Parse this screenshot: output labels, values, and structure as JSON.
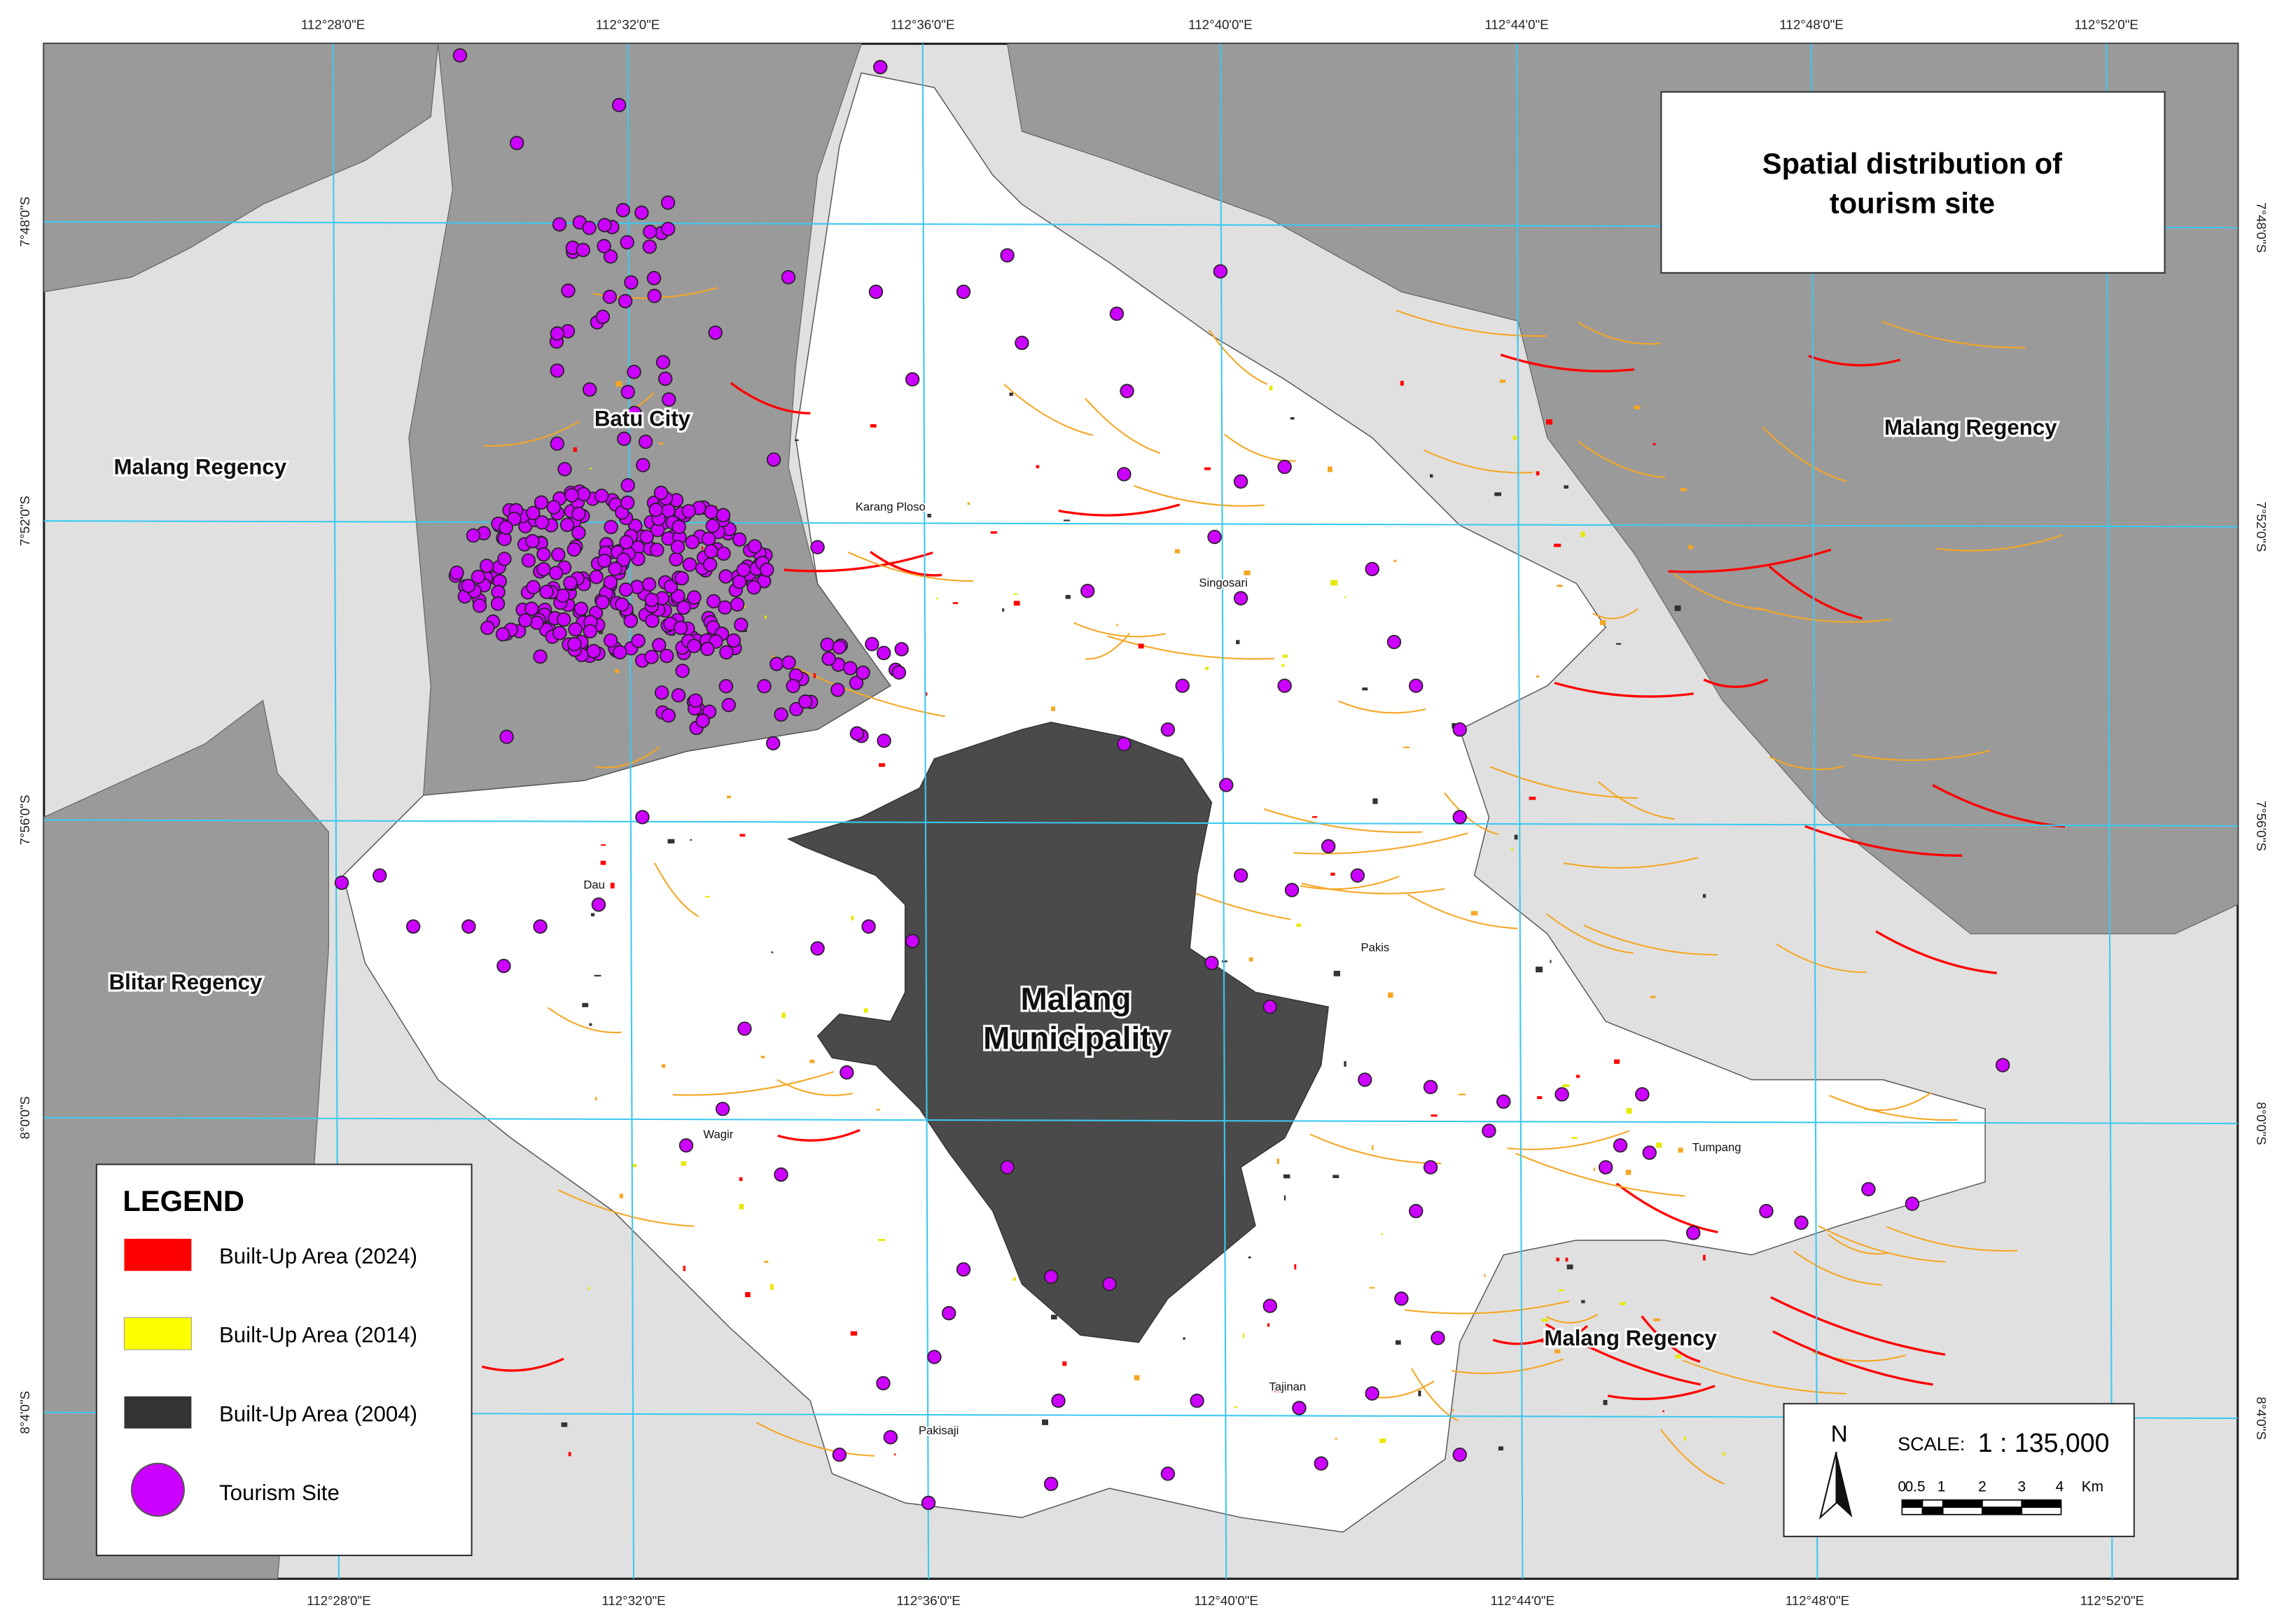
{
  "title": {
    "lines": [
      "Spatial distribution of",
      "tourism site"
    ]
  },
  "grid": {
    "top": [
      "112°28'0\"E",
      "112°32'0\"E",
      "112°36'0\"E",
      "112°40'0\"E",
      "112°44'0\"E",
      "112°48'0\"E",
      "112°52'0\"E"
    ],
    "bottom": [
      "112°28'0\"E",
      "112°32'0\"E",
      "112°36'0\"E",
      "112°40'0\"E",
      "112°44'0\"E",
      "112°48'0\"E",
      "112°52'0\"E"
    ],
    "left": [
      "7°48'0\"S",
      "7°52'0\"S",
      "7°56'0\"S",
      "8°0'0\"S",
      "8°4'0\"S"
    ],
    "right": [
      "7°48'0\"S",
      "7°52'0\"S",
      "7°56'0\"S",
      "8°0'0\"S",
      "8°4'0\"S"
    ]
  },
  "regions": {
    "malang_regency_west": "Malang Regency",
    "malang_regency_east": "Malang Regency",
    "malang_regency_south": "Malang Regency",
    "batu": "Batu City",
    "blitar": "Blitar Regency",
    "municipality": [
      "Malang",
      "Municipality"
    ]
  },
  "places": [
    "Karang Ploso",
    "Singosari",
    "Dau",
    "Pakis",
    "Wagir",
    "Tumpang",
    "Tajinan",
    "Pakisaji"
  ],
  "legend": {
    "title": "LEGEND",
    "items": [
      "Built-Up Area (2024)",
      "Built-Up Area (2014)",
      "Built-Up Area (2004)",
      "Tourism Site"
    ]
  },
  "scale": {
    "north": "N",
    "label": "SCALE:",
    "ratio": "1 : 135,000",
    "ticks": [
      "0",
      "0.5",
      "1",
      "2",
      "3",
      "4"
    ],
    "unit": "Km"
  }
}
